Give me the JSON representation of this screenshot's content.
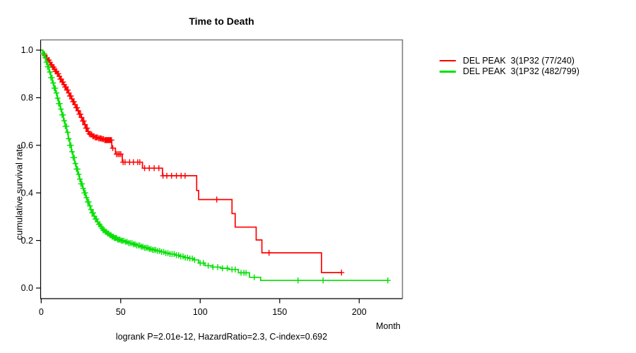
{
  "chart_data": {
    "type": "line",
    "subtype": "kaplan_meier_step_survival",
    "title": "Time to Death",
    "xlabel": "Month",
    "ylabel": "cumulative survival rate",
    "annotation": "logrank P=2.01e-12, HazardRatio=2.3, C-index=0.692",
    "xlim": [
      0,
      227
    ],
    "ylim": [
      0,
      1
    ],
    "grid": false,
    "legend_position": "right-outside",
    "x_ticks": {
      "values": [
        0,
        50,
        100,
        150,
        200
      ],
      "labels": [
        "0",
        "50",
        "100",
        "150",
        "200"
      ]
    },
    "y_ticks": {
      "values": [
        0,
        0.2,
        0.4,
        0.6,
        0.8,
        1
      ],
      "labels": [
        "0.0",
        "0.2",
        "0.4",
        "0.6",
        "0.8",
        "1.0"
      ]
    },
    "series": [
      {
        "name": "DEL PEAK  3(1P32 (77/240)",
        "events_over_total": "77/240",
        "color": "#ff0000",
        "end_time": 189,
        "steps": [
          [
            0,
            1.0
          ],
          [
            1,
            0.988
          ],
          [
            2,
            0.979
          ],
          [
            3,
            0.967
          ],
          [
            4,
            0.958
          ],
          [
            5,
            0.949
          ],
          [
            6,
            0.938
          ],
          [
            7,
            0.929
          ],
          [
            8,
            0.92
          ],
          [
            9,
            0.911
          ],
          [
            10,
            0.901
          ],
          [
            11,
            0.89
          ],
          [
            12,
            0.878
          ],
          [
            13,
            0.866
          ],
          [
            14,
            0.855
          ],
          [
            15,
            0.845
          ],
          [
            16,
            0.832
          ],
          [
            17,
            0.82
          ],
          [
            18,
            0.807
          ],
          [
            19,
            0.795
          ],
          [
            20,
            0.783
          ],
          [
            21,
            0.771
          ],
          [
            22,
            0.758
          ],
          [
            23,
            0.745
          ],
          [
            24,
            0.731
          ],
          [
            25,
            0.717
          ],
          [
            26,
            0.702
          ],
          [
            27,
            0.687
          ],
          [
            28,
            0.672
          ],
          [
            29,
            0.658
          ],
          [
            30,
            0.648
          ],
          [
            31,
            0.645
          ],
          [
            32.5,
            0.638
          ],
          [
            34,
            0.633
          ],
          [
            36,
            0.629
          ],
          [
            38,
            0.626
          ],
          [
            40,
            0.622
          ],
          [
            44.4,
            0.588
          ],
          [
            46.7,
            0.563
          ],
          [
            51,
            0.529
          ],
          [
            63.7,
            0.504
          ],
          [
            76.3,
            0.472
          ],
          [
            97.8,
            0.41
          ],
          [
            99,
            0.372
          ],
          [
            120,
            0.313
          ],
          [
            122,
            0.256
          ],
          [
            135.2,
            0.202
          ],
          [
            138.8,
            0.148
          ],
          [
            176.3,
            0.065
          ]
        ],
        "censor_times": [
          2.2,
          3.1,
          3.7,
          4.3,
          4.9,
          5.5,
          6.1,
          6.7,
          7.2,
          7.8,
          8.4,
          9,
          9.6,
          10.2,
          10.8,
          11.4,
          12,
          12.6,
          13.2,
          13.8,
          14.4,
          15,
          15.6,
          16.2,
          16.8,
          17.4,
          18,
          18.7,
          19.3,
          20,
          20.6,
          21.3,
          22,
          22.6,
          23.3,
          24,
          24.7,
          25.4,
          26.1,
          26.8,
          27.5,
          28.2,
          28.9,
          29.6,
          30.3,
          31,
          31.8,
          32.5,
          33.2,
          34,
          34.7,
          35.4,
          36.2,
          37,
          37.7,
          38.4,
          39.2,
          40,
          40.6,
          41.2,
          41.8,
          42.4,
          43,
          43.6,
          44.2,
          45,
          47.4,
          48.3,
          49.2,
          50.1,
          51.5,
          52.7,
          55.6,
          58,
          60.7,
          62,
          65,
          68,
          71,
          74,
          76.6,
          79,
          82,
          85,
          88,
          90.5,
          110.4,
          143.3,
          188.9
        ]
      },
      {
        "name": "DEL PEAK  3(1P32 (482/799)",
        "events_over_total": "482/799",
        "color": "#00e000",
        "end_time": 218,
        "steps": [
          [
            0,
            1.0
          ],
          [
            1,
            0.985
          ],
          [
            2,
            0.968
          ],
          [
            3,
            0.95
          ],
          [
            4,
            0.93
          ],
          [
            5,
            0.908
          ],
          [
            6,
            0.884
          ],
          [
            7,
            0.862
          ],
          [
            8,
            0.84
          ],
          [
            9,
            0.82
          ],
          [
            10,
            0.798
          ],
          [
            11,
            0.775
          ],
          [
            12,
            0.752
          ],
          [
            13,
            0.728
          ],
          [
            14,
            0.703
          ],
          [
            15,
            0.68
          ],
          [
            16,
            0.655
          ],
          [
            17,
            0.628
          ],
          [
            18,
            0.6
          ],
          [
            19,
            0.573
          ],
          [
            20,
            0.548
          ],
          [
            21,
            0.523
          ],
          [
            22,
            0.5
          ],
          [
            23,
            0.478
          ],
          [
            24,
            0.458
          ],
          [
            25,
            0.438
          ],
          [
            26,
            0.419
          ],
          [
            27,
            0.4
          ],
          [
            28,
            0.38
          ],
          [
            29,
            0.362
          ],
          [
            30,
            0.345
          ],
          [
            31,
            0.33
          ],
          [
            32,
            0.316
          ],
          [
            33,
            0.302
          ],
          [
            34,
            0.29
          ],
          [
            35,
            0.278
          ],
          [
            36,
            0.268
          ],
          [
            37,
            0.259
          ],
          [
            38,
            0.251
          ],
          [
            39,
            0.243
          ],
          [
            40,
            0.236
          ],
          [
            41.5,
            0.229
          ],
          [
            43,
            0.222
          ],
          [
            44.5,
            0.216
          ],
          [
            46,
            0.21
          ],
          [
            48,
            0.204
          ],
          [
            50,
            0.199
          ],
          [
            52.5,
            0.194
          ],
          [
            55,
            0.189
          ],
          [
            57.5,
            0.184
          ],
          [
            60,
            0.179
          ],
          [
            62.5,
            0.174
          ],
          [
            65,
            0.169
          ],
          [
            67.5,
            0.164
          ],
          [
            70,
            0.16
          ],
          [
            72.5,
            0.156
          ],
          [
            75,
            0.152
          ],
          [
            78,
            0.147
          ],
          [
            81,
            0.143
          ],
          [
            84,
            0.138
          ],
          [
            87,
            0.133
          ],
          [
            90,
            0.128
          ],
          [
            93,
            0.124
          ],
          [
            96,
            0.118
          ],
          [
            99,
            0.105
          ],
          [
            103,
            0.094
          ],
          [
            108,
            0.088
          ],
          [
            113,
            0.083
          ],
          [
            118,
            0.078
          ],
          [
            124,
            0.064
          ],
          [
            131,
            0.045
          ],
          [
            138,
            0.032
          ]
        ],
        "censor_times": [
          1.2,
          1.9,
          2.6,
          3.3,
          4,
          4.7,
          5.4,
          6.1,
          6.8,
          7.5,
          8.2,
          8.9,
          9.6,
          10.3,
          11,
          11.7,
          12.4,
          13.1,
          13.8,
          14.5,
          15.2,
          15.9,
          16.6,
          17.3,
          18,
          18.7,
          19.4,
          20.1,
          20.8,
          21.5,
          22.2,
          22.9,
          23.6,
          24.3,
          25,
          25.7,
          26.4,
          27.1,
          27.8,
          28.5,
          29.2,
          29.9,
          30.6,
          31.3,
          32,
          32.7,
          33.4,
          34.1,
          34.8,
          35.5,
          36.2,
          36.9,
          37.6,
          38.3,
          39,
          39.7,
          40.4,
          41.1,
          41.8,
          42.5,
          43.2,
          43.9,
          44.6,
          45.3,
          46,
          46.7,
          47.4,
          48.1,
          48.8,
          49.5,
          50.3,
          51.1,
          52,
          53,
          54,
          55,
          56,
          57,
          58,
          59,
          60,
          61,
          62,
          63,
          64,
          65,
          66,
          67,
          68,
          69,
          70,
          71,
          72,
          73.2,
          74.5,
          75.8,
          77.1,
          78.4,
          79.7,
          81,
          82.3,
          83.6,
          85,
          86.4,
          87.8,
          89.2,
          90.6,
          92,
          93.5,
          95,
          96.5,
          100,
          102,
          105,
          108,
          111,
          114,
          117,
          120,
          122,
          125.7,
          127.5,
          128.8,
          134,
          161.5,
          177.3,
          218
        ]
      }
    ]
  }
}
